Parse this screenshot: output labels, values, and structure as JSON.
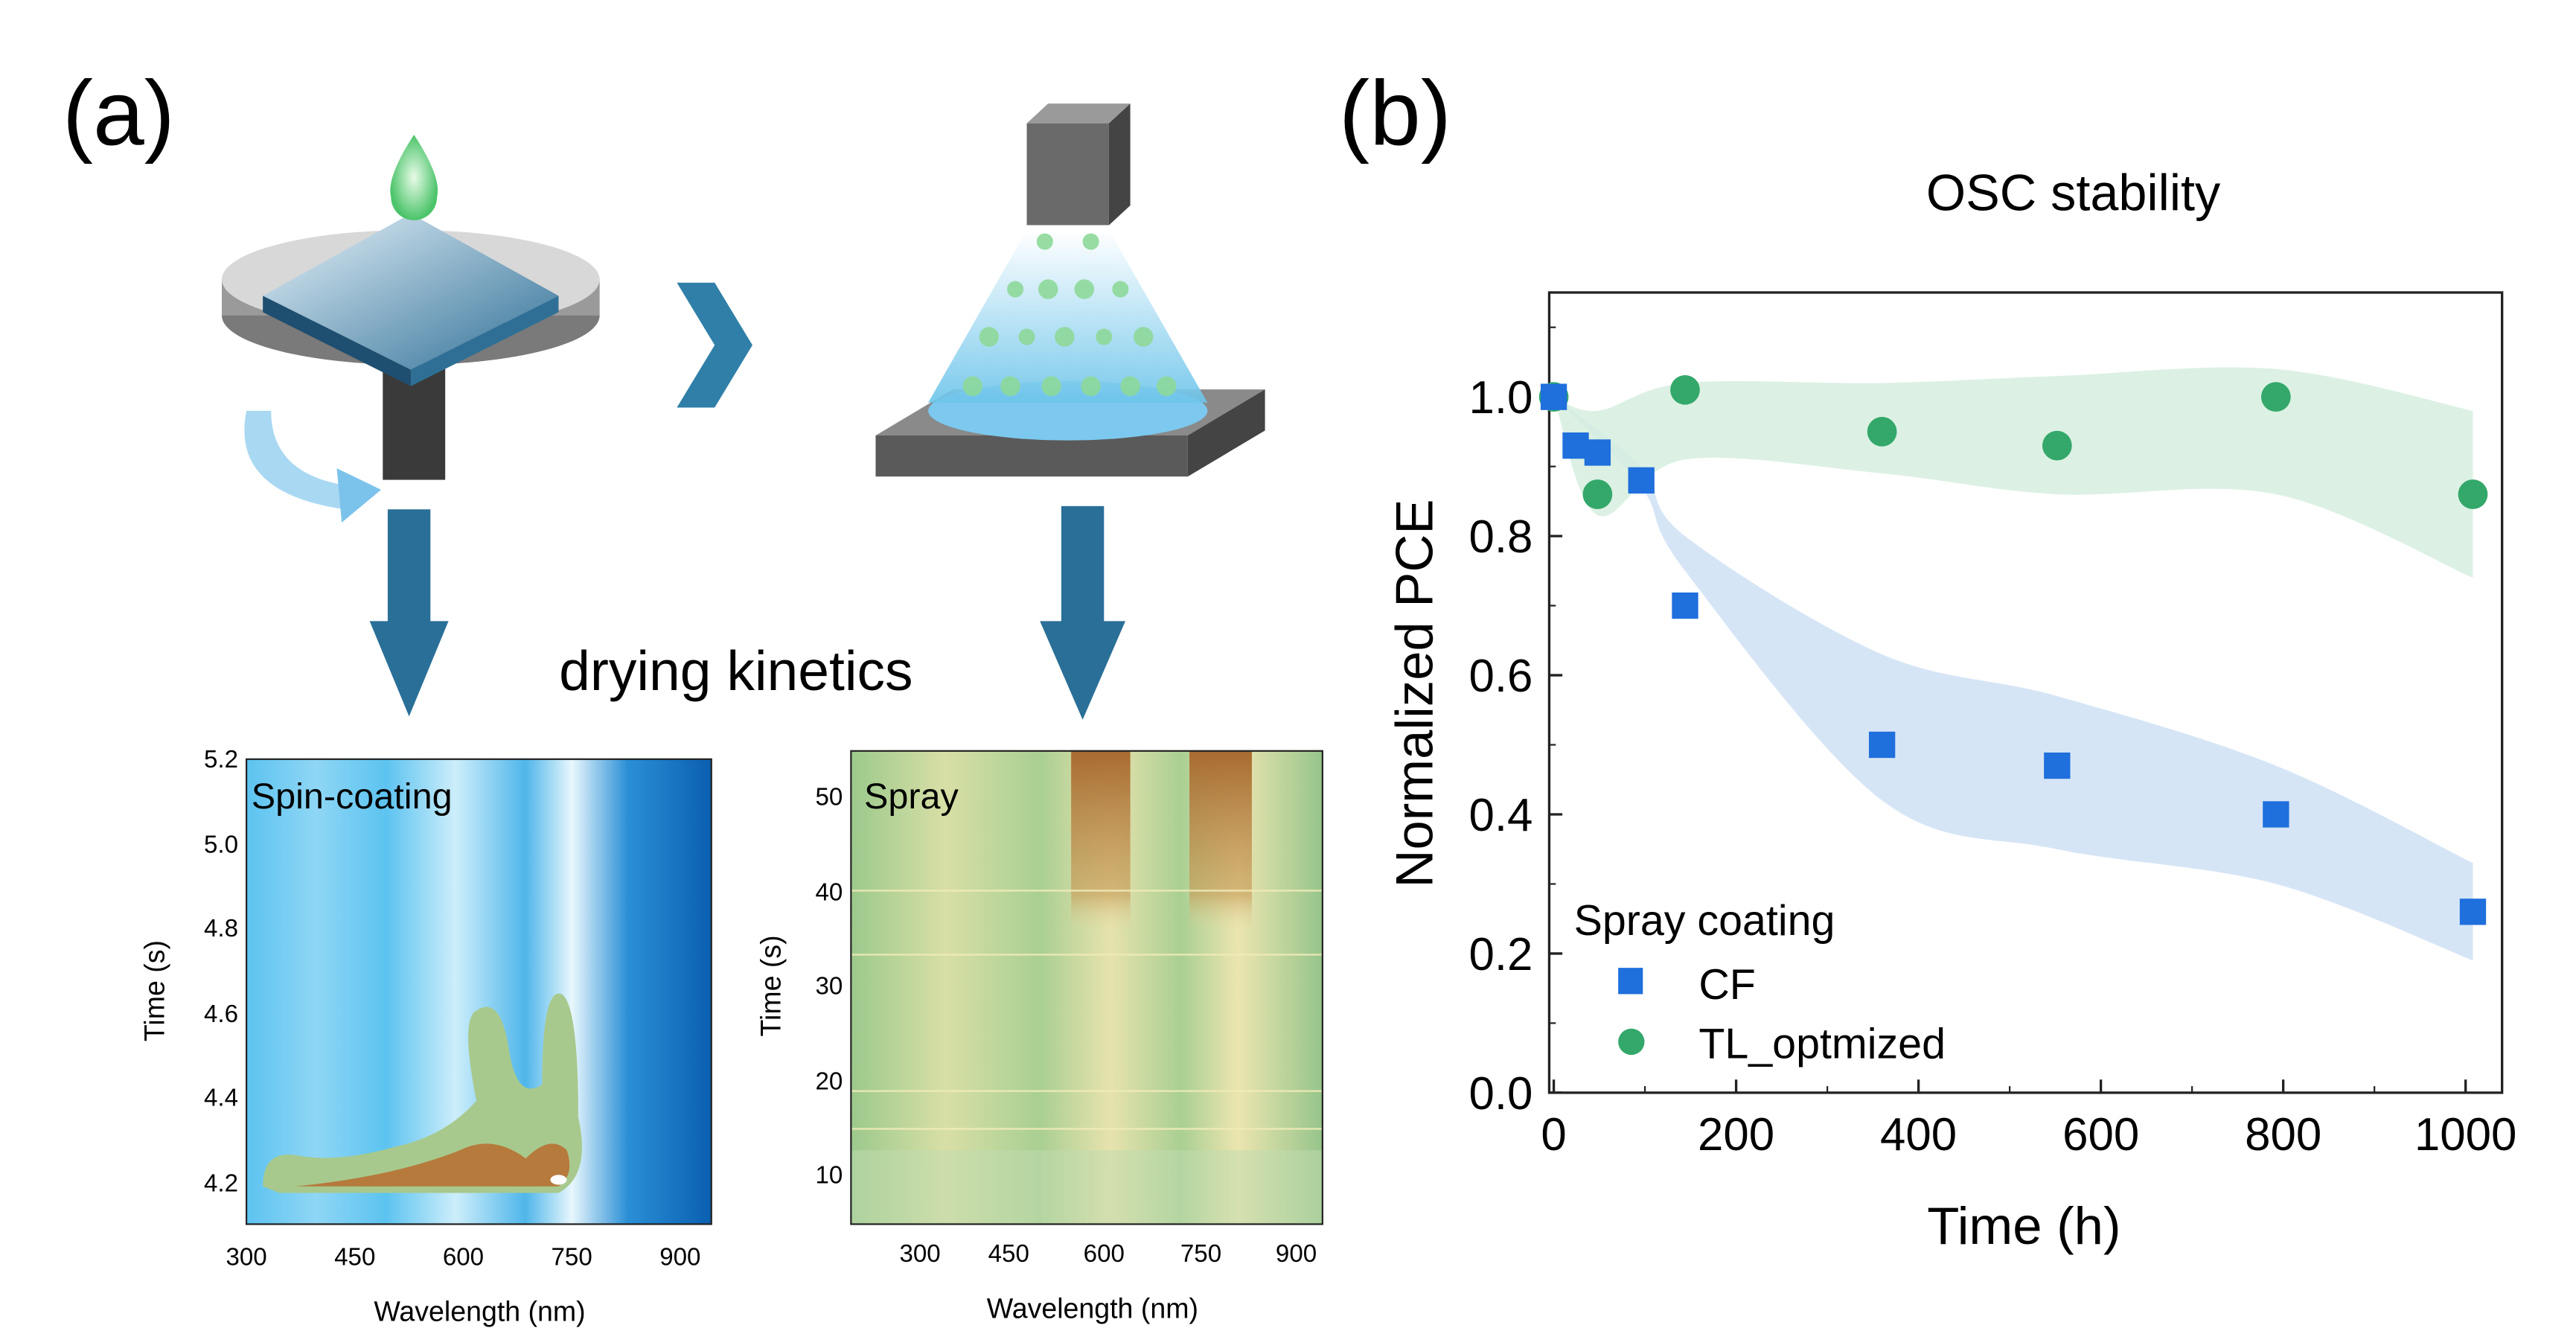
{
  "panel_a": {
    "label": "(a)",
    "caption": "drying kinetics",
    "spin_map": {
      "title": "Spin-coating",
      "xlabel": "Wavelength (nm)",
      "ylabel": "Time (s)",
      "xticks": [
        "300",
        "450",
        "600",
        "750",
        "900"
      ],
      "yticks": [
        "4.2",
        "4.4",
        "4.6",
        "4.8",
        "5.0",
        "5.2"
      ]
    },
    "spray_map": {
      "title": "Spray",
      "xlabel": "Wavelength (nm)",
      "ylabel": "Time (s)",
      "xticks": [
        "300",
        "450",
        "600",
        "750",
        "900"
      ],
      "yticks": [
        "10",
        "20",
        "30",
        "40",
        "50"
      ]
    }
  },
  "panel_b": {
    "label": "(b)"
  },
  "chart_data": {
    "type": "scatter",
    "title": "OSC stability",
    "xlabel": "Time (h)",
    "ylabel": "Normalized PCE",
    "xlim": [
      -5,
      1040
    ],
    "ylim": [
      0,
      1.15
    ],
    "xticks": [
      0,
      200,
      400,
      600,
      800,
      1000
    ],
    "yticks": [
      0.0,
      0.2,
      0.4,
      0.6,
      0.8,
      1.0
    ],
    "grid": false,
    "legend_title": "Spray coating",
    "legend_position": "bottom-left",
    "series": [
      {
        "name": "CF",
        "marker": "square",
        "color": "#1f6fdc",
        "band_color": "#cfe0f5",
        "x": [
          0,
          24,
          48,
          96,
          144,
          360,
          552,
          792,
          1008
        ],
        "y": [
          1.0,
          0.93,
          0.92,
          0.88,
          0.7,
          0.5,
          0.47,
          0.4,
          0.26
        ],
        "band_x": [
          0,
          96,
          144,
          360,
          552,
          792,
          1008
        ],
        "band_upper": [
          1.0,
          0.9,
          0.8,
          0.63,
          0.57,
          0.47,
          0.33
        ],
        "band_lower": [
          1.0,
          0.87,
          0.75,
          0.42,
          0.35,
          0.3,
          0.19
        ]
      },
      {
        "name": "TL_optmized",
        "marker": "circle",
        "color": "#33a86a",
        "band_color": "#d6efdf",
        "x": [
          0,
          48,
          144,
          360,
          552,
          792,
          1008
        ],
        "y": [
          1.0,
          0.86,
          1.01,
          0.95,
          0.93,
          1.0,
          0.86
        ],
        "band_x": [
          0,
          48,
          144,
          360,
          552,
          792,
          1008
        ],
        "band_upper": [
          1.0,
          0.98,
          1.02,
          1.02,
          1.03,
          1.04,
          0.98
        ],
        "band_lower": [
          1.0,
          0.83,
          0.91,
          0.89,
          0.86,
          0.86,
          0.74
        ]
      }
    ]
  }
}
